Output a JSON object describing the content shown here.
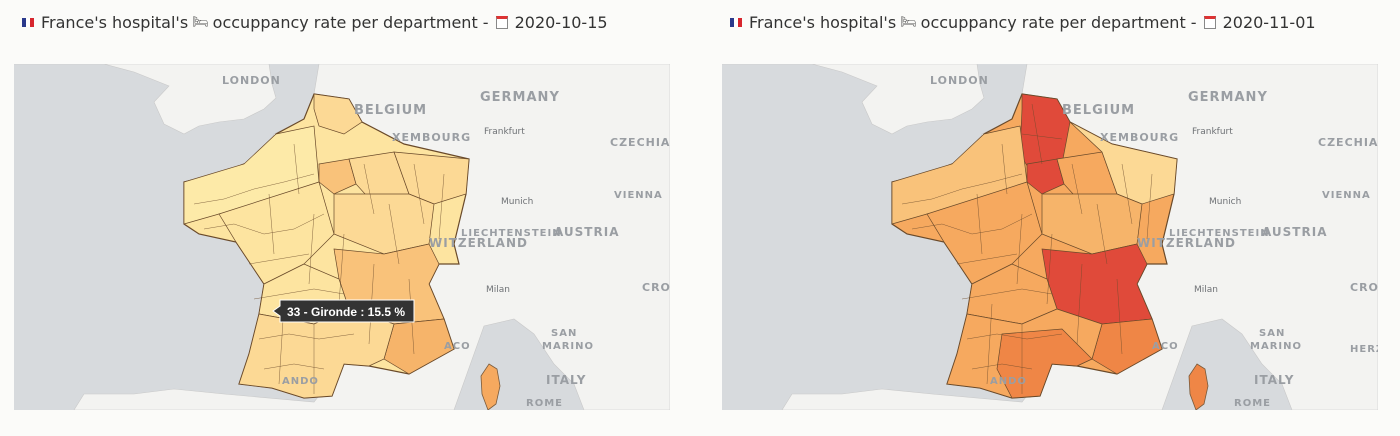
{
  "colors": {
    "flag_blue": "#2b3a8c",
    "flag_white": "#ffffff",
    "flag_red": "#d7262e",
    "land": "#f3f3f1",
    "sea": "#d7dadd",
    "border": "#7a5a3a",
    "scale": [
      "#fdeaa8",
      "#fcd995",
      "#f9c27a",
      "#f6a95f",
      "#ef8646",
      "#e04a3a"
    ]
  },
  "icons": {
    "flag": "france-flag-icon",
    "bed": "bed-icon",
    "calendar": "calendar-icon"
  },
  "panels": [
    {
      "title_text": "France's hospital's",
      "title_suffix": "occuppancy rate per department -",
      "date": "2020-10-15",
      "tooltip": "33 - Gironde : 15.5 %",
      "labels": {
        "london": "LONDON",
        "belgium": "BELGIUM",
        "germany": "GERMANY",
        "luxembourg": "XEMBOURG",
        "frankfurt": "Frankfurt",
        "czechia": "CZECHIA",
        "vienna": "VIENNA",
        "munich": "Munich",
        "liechtenstein": "LIECHTENSTEIN",
        "austria": "AUSTRIA",
        "switzerland": "WITZERLAND",
        "milan": "Milan",
        "croatia": "CRO",
        "san": "SAN",
        "marino": "MARINO",
        "aco": "ACO",
        "andorra": "ANDO",
        "italy": "ITALY",
        "rome": "ROME",
        "herz": ""
      }
    },
    {
      "title_text": "France's hospital's",
      "title_suffix": "occuppancy rate per department -",
      "date": "2020-11-01",
      "tooltip": "",
      "labels": {
        "london": "LONDON",
        "belgium": "BELGIUM",
        "germany": "GERMANY",
        "luxembourg": "XEMBOURG",
        "frankfurt": "Frankfurt",
        "czechia": "CZECHIA",
        "vienna": "VIENNA",
        "munich": "Munich",
        "liechtenstein": "LIECHTENSTEIN",
        "austria": "AUSTRIA",
        "switzerland": "WITZERLAND",
        "milan": "Milan",
        "croatia": "CRO",
        "san": "SAN",
        "marino": "MARINO",
        "aco": "ACO",
        "andorra": "ANDO",
        "italy": "ITALY",
        "rome": "ROME",
        "herz": "HERZ"
      }
    }
  ]
}
